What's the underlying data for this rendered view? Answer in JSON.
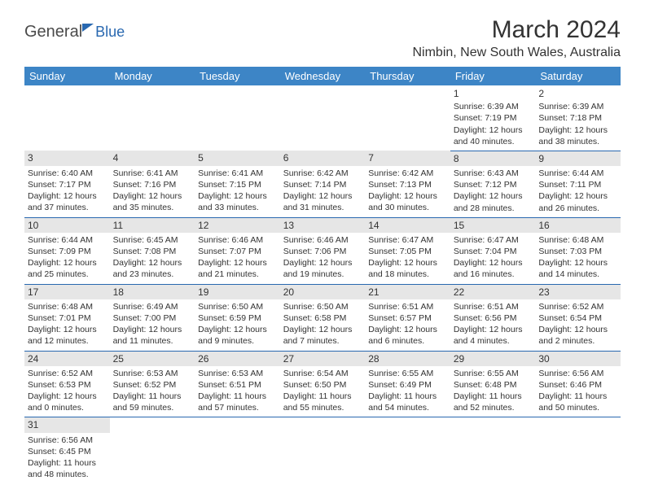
{
  "logo": {
    "part1": "General",
    "part2": "Blue"
  },
  "title": "March 2024",
  "location": "Nimbin, New South Wales, Australia",
  "headers": [
    "Sunday",
    "Monday",
    "Tuesday",
    "Wednesday",
    "Thursday",
    "Friday",
    "Saturday"
  ],
  "colors": {
    "header_bg": "#3d85c6",
    "header_fg": "#ffffff",
    "accent": "#2968b0",
    "band_bg": "#e6e6e6",
    "text": "#333333",
    "background": "#ffffff"
  },
  "fonts": {
    "title_size": 30,
    "location_size": 16,
    "header_size": 13,
    "cell_size": 10.5,
    "daynum_size": 12
  },
  "weeks": [
    {
      "band": false,
      "days": [
        null,
        null,
        null,
        null,
        null,
        {
          "n": "1",
          "sr": "Sunrise: 6:39 AM",
          "ss": "Sunset: 7:19 PM",
          "dl": "Daylight: 12 hours and 40 minutes."
        },
        {
          "n": "2",
          "sr": "Sunrise: 6:39 AM",
          "ss": "Sunset: 7:18 PM",
          "dl": "Daylight: 12 hours and 38 minutes."
        }
      ]
    },
    {
      "band": true,
      "days": [
        {
          "n": "3",
          "sr": "Sunrise: 6:40 AM",
          "ss": "Sunset: 7:17 PM",
          "dl": "Daylight: 12 hours and 37 minutes."
        },
        {
          "n": "4",
          "sr": "Sunrise: 6:41 AM",
          "ss": "Sunset: 7:16 PM",
          "dl": "Daylight: 12 hours and 35 minutes."
        },
        {
          "n": "5",
          "sr": "Sunrise: 6:41 AM",
          "ss": "Sunset: 7:15 PM",
          "dl": "Daylight: 12 hours and 33 minutes."
        },
        {
          "n": "6",
          "sr": "Sunrise: 6:42 AM",
          "ss": "Sunset: 7:14 PM",
          "dl": "Daylight: 12 hours and 31 minutes."
        },
        {
          "n": "7",
          "sr": "Sunrise: 6:42 AM",
          "ss": "Sunset: 7:13 PM",
          "dl": "Daylight: 12 hours and 30 minutes."
        },
        {
          "n": "8",
          "sr": "Sunrise: 6:43 AM",
          "ss": "Sunset: 7:12 PM",
          "dl": "Daylight: 12 hours and 28 minutes."
        },
        {
          "n": "9",
          "sr": "Sunrise: 6:44 AM",
          "ss": "Sunset: 7:11 PM",
          "dl": "Daylight: 12 hours and 26 minutes."
        }
      ]
    },
    {
      "band": true,
      "days": [
        {
          "n": "10",
          "sr": "Sunrise: 6:44 AM",
          "ss": "Sunset: 7:09 PM",
          "dl": "Daylight: 12 hours and 25 minutes."
        },
        {
          "n": "11",
          "sr": "Sunrise: 6:45 AM",
          "ss": "Sunset: 7:08 PM",
          "dl": "Daylight: 12 hours and 23 minutes."
        },
        {
          "n": "12",
          "sr": "Sunrise: 6:46 AM",
          "ss": "Sunset: 7:07 PM",
          "dl": "Daylight: 12 hours and 21 minutes."
        },
        {
          "n": "13",
          "sr": "Sunrise: 6:46 AM",
          "ss": "Sunset: 7:06 PM",
          "dl": "Daylight: 12 hours and 19 minutes."
        },
        {
          "n": "14",
          "sr": "Sunrise: 6:47 AM",
          "ss": "Sunset: 7:05 PM",
          "dl": "Daylight: 12 hours and 18 minutes."
        },
        {
          "n": "15",
          "sr": "Sunrise: 6:47 AM",
          "ss": "Sunset: 7:04 PM",
          "dl": "Daylight: 12 hours and 16 minutes."
        },
        {
          "n": "16",
          "sr": "Sunrise: 6:48 AM",
          "ss": "Sunset: 7:03 PM",
          "dl": "Daylight: 12 hours and 14 minutes."
        }
      ]
    },
    {
      "band": true,
      "days": [
        {
          "n": "17",
          "sr": "Sunrise: 6:48 AM",
          "ss": "Sunset: 7:01 PM",
          "dl": "Daylight: 12 hours and 12 minutes."
        },
        {
          "n": "18",
          "sr": "Sunrise: 6:49 AM",
          "ss": "Sunset: 7:00 PM",
          "dl": "Daylight: 12 hours and 11 minutes."
        },
        {
          "n": "19",
          "sr": "Sunrise: 6:50 AM",
          "ss": "Sunset: 6:59 PM",
          "dl": "Daylight: 12 hours and 9 minutes."
        },
        {
          "n": "20",
          "sr": "Sunrise: 6:50 AM",
          "ss": "Sunset: 6:58 PM",
          "dl": "Daylight: 12 hours and 7 minutes."
        },
        {
          "n": "21",
          "sr": "Sunrise: 6:51 AM",
          "ss": "Sunset: 6:57 PM",
          "dl": "Daylight: 12 hours and 6 minutes."
        },
        {
          "n": "22",
          "sr": "Sunrise: 6:51 AM",
          "ss": "Sunset: 6:56 PM",
          "dl": "Daylight: 12 hours and 4 minutes."
        },
        {
          "n": "23",
          "sr": "Sunrise: 6:52 AM",
          "ss": "Sunset: 6:54 PM",
          "dl": "Daylight: 12 hours and 2 minutes."
        }
      ]
    },
    {
      "band": true,
      "days": [
        {
          "n": "24",
          "sr": "Sunrise: 6:52 AM",
          "ss": "Sunset: 6:53 PM",
          "dl": "Daylight: 12 hours and 0 minutes."
        },
        {
          "n": "25",
          "sr": "Sunrise: 6:53 AM",
          "ss": "Sunset: 6:52 PM",
          "dl": "Daylight: 11 hours and 59 minutes."
        },
        {
          "n": "26",
          "sr": "Sunrise: 6:53 AM",
          "ss": "Sunset: 6:51 PM",
          "dl": "Daylight: 11 hours and 57 minutes."
        },
        {
          "n": "27",
          "sr": "Sunrise: 6:54 AM",
          "ss": "Sunset: 6:50 PM",
          "dl": "Daylight: 11 hours and 55 minutes."
        },
        {
          "n": "28",
          "sr": "Sunrise: 6:55 AM",
          "ss": "Sunset: 6:49 PM",
          "dl": "Daylight: 11 hours and 54 minutes."
        },
        {
          "n": "29",
          "sr": "Sunrise: 6:55 AM",
          "ss": "Sunset: 6:48 PM",
          "dl": "Daylight: 11 hours and 52 minutes."
        },
        {
          "n": "30",
          "sr": "Sunrise: 6:56 AM",
          "ss": "Sunset: 6:46 PM",
          "dl": "Daylight: 11 hours and 50 minutes."
        }
      ]
    },
    {
      "band": true,
      "days": [
        {
          "n": "31",
          "sr": "Sunrise: 6:56 AM",
          "ss": "Sunset: 6:45 PM",
          "dl": "Daylight: 11 hours and 48 minutes."
        },
        null,
        null,
        null,
        null,
        null,
        null
      ]
    }
  ]
}
